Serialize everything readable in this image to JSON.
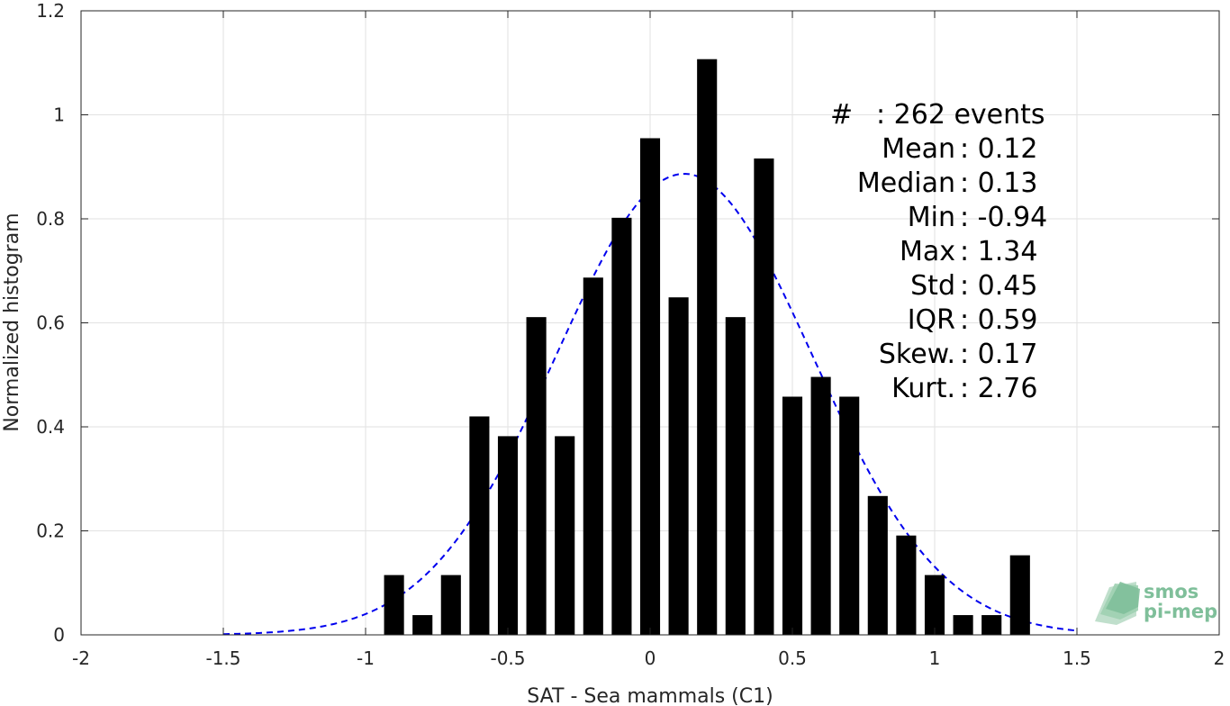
{
  "chart_data": {
    "type": "bar",
    "xlabel": "SAT - Sea mammals (C1)",
    "ylabel": "Normalized histogram",
    "xlim": [
      -2,
      2
    ],
    "ylim": [
      0,
      1.2
    ],
    "grid": true,
    "x_ticks": [
      "-2",
      "-1.5",
      "-1",
      "-0.5",
      "0",
      "0.5",
      "1",
      "1.5",
      "2"
    ],
    "y_ticks": [
      "0",
      "0.2",
      "0.4",
      "0.6",
      "0.8",
      "1",
      "1.2"
    ],
    "bar_color": "#000000",
    "bar_width": 0.07,
    "bins": [
      {
        "x": -0.9,
        "y": 0.115
      },
      {
        "x": -0.8,
        "y": 0.038
      },
      {
        "x": -0.7,
        "y": 0.115
      },
      {
        "x": -0.6,
        "y": 0.42
      },
      {
        "x": -0.5,
        "y": 0.382
      },
      {
        "x": -0.4,
        "y": 0.611
      },
      {
        "x": -0.3,
        "y": 0.382
      },
      {
        "x": -0.2,
        "y": 0.687
      },
      {
        "x": -0.1,
        "y": 0.802
      },
      {
        "x": 0.0,
        "y": 0.955
      },
      {
        "x": 0.1,
        "y": 0.649
      },
      {
        "x": 0.2,
        "y": 1.107
      },
      {
        "x": 0.3,
        "y": 0.611
      },
      {
        "x": 0.4,
        "y": 0.916
      },
      {
        "x": 0.5,
        "y": 0.458
      },
      {
        "x": 0.6,
        "y": 0.496
      },
      {
        "x": 0.7,
        "y": 0.458
      },
      {
        "x": 0.8,
        "y": 0.267
      },
      {
        "x": 0.9,
        "y": 0.191
      },
      {
        "x": 1.0,
        "y": 0.115
      },
      {
        "x": 1.1,
        "y": 0.038
      },
      {
        "x": 1.2,
        "y": 0.038
      },
      {
        "x": 1.3,
        "y": 0.153
      }
    ],
    "fit_curve": {
      "style": "dashed",
      "color": "#0000ee",
      "mean": 0.12,
      "std": 0.45,
      "x_range": [
        -1.5,
        1.5
      ]
    },
    "stats": [
      {
        "label": "#",
        "value": "262 events"
      },
      {
        "label": "Mean",
        "value": "0.12"
      },
      {
        "label": "Median",
        "value": "0.13"
      },
      {
        "label": "Min",
        "value": "-0.94"
      },
      {
        "label": "Max",
        "value": "1.34"
      },
      {
        "label": "Std",
        "value": "0.45"
      },
      {
        "label": "IQR",
        "value": "0.59"
      },
      {
        "label": "Skew.",
        "value": "0.17"
      },
      {
        "label": "Kurt.",
        "value": "2.76"
      }
    ]
  },
  "logo": {
    "line1": "smos",
    "line2": "pi-mep",
    "color": "#7fbf9a"
  }
}
